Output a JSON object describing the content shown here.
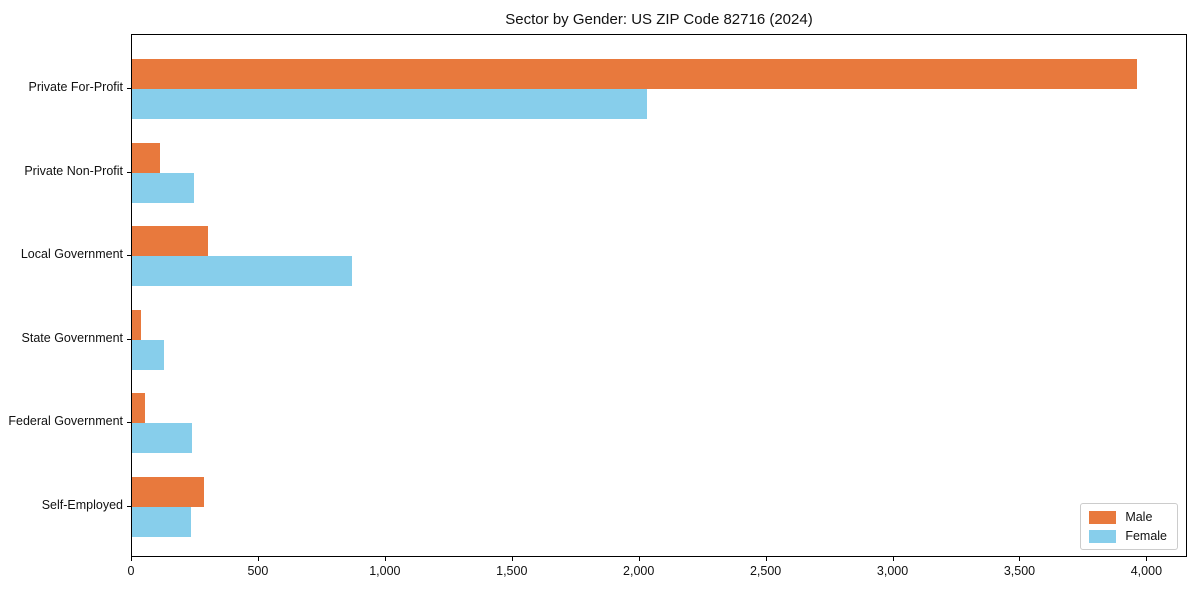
{
  "chart_data": {
    "type": "bar",
    "orientation": "horizontal",
    "title": "Sector by Gender: US ZIP Code 82716 (2024)",
    "categories": [
      "Private For-Profit",
      "Private Non-Profit",
      "Local Government",
      "State Government",
      "Federal Government",
      "Self-Employed"
    ],
    "series": [
      {
        "name": "Male",
        "color": "#e8793d",
        "values": [
          3960,
          110,
          298,
          36,
          51,
          285
        ]
      },
      {
        "name": "Female",
        "color": "#87ceeb",
        "values": [
          2030,
          243,
          866,
          127,
          237,
          233
        ]
      }
    ],
    "xlabel": "",
    "ylabel": "",
    "xlim": [
      0,
      4160
    ],
    "xticks": [
      0,
      500,
      1000,
      1500,
      2000,
      2500,
      3000,
      3500,
      4000
    ],
    "xtick_labels": [
      "0",
      "500",
      "1,000",
      "1,500",
      "2,000",
      "2,500",
      "3,000",
      "3,500",
      "4,000"
    ],
    "legend_position": "lower right",
    "grid": false,
    "background_color": "#ffffff",
    "spine_color": "#000000"
  }
}
